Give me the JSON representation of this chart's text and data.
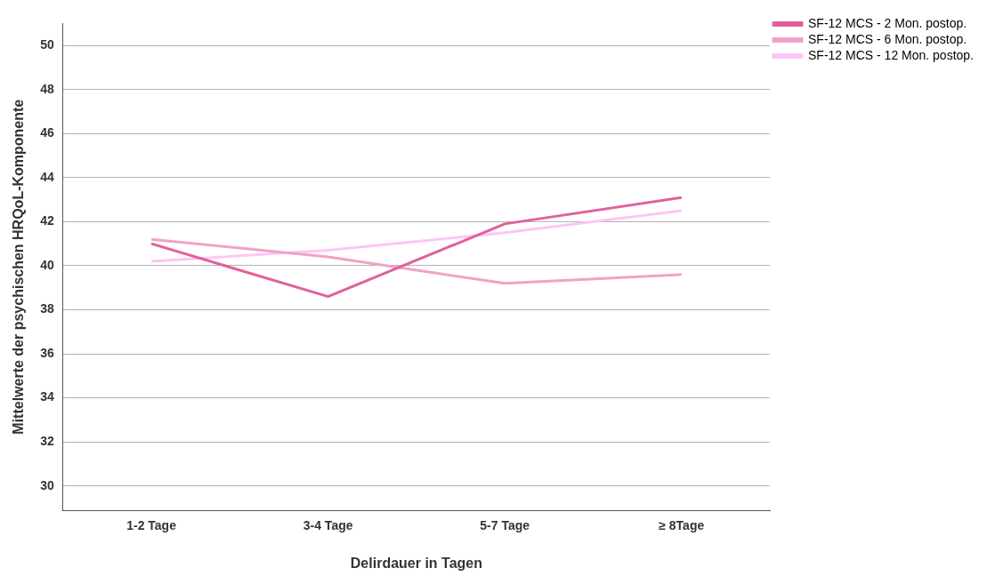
{
  "chart_data": {
    "type": "line",
    "xlabel": "Delirdauer in Tagen",
    "ylabel": "Mittelwerte der psychischen HRQoL-Komponente",
    "categories": [
      "1-2 Tage",
      "3-4 Tage",
      "5-7 Tage",
      "≥ 8Tage"
    ],
    "series": [
      {
        "name": "SF-12 MCS - 2 Mon. postop.",
        "color": "#e2609c",
        "values": [
          41.0,
          38.6,
          41.9,
          43.1
        ]
      },
      {
        "name": "SF-12 MCS - 6 Mon. postop.",
        "color": "#f0a2c6",
        "values": [
          41.2,
          40.4,
          39.2,
          39.6
        ]
      },
      {
        "name": "SF-12 MCS - 12 Mon. postop.",
        "color": "#fcc6f6",
        "values": [
          40.2,
          40.7,
          41.5,
          42.5
        ]
      }
    ],
    "ylim": [
      28.9,
      51
    ],
    "yticks": [
      30,
      32,
      34,
      36,
      38,
      40,
      42,
      44,
      46,
      48,
      50
    ],
    "grid": "y",
    "legend": "top right",
    "marker": "none",
    "line_style": "solid"
  }
}
